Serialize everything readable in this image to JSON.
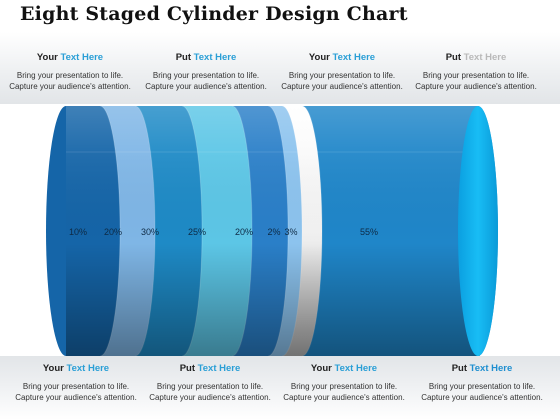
{
  "title": "Eight Staged Cylinder Design Chart",
  "top_blocks": [
    {
      "word1": "Your",
      "word2": "Text Here",
      "line1": "Bring your presentation to life.",
      "line2": "Capture your audience's attention."
    },
    {
      "word1": "Put",
      "word2": "Text Here",
      "line1": "Bring your presentation to life.",
      "line2": "Capture your audience's attention."
    },
    {
      "word1": "Your",
      "word2": "Text Here",
      "line1": "Bring your presentation to life.",
      "line2": "Capture your audience's attention."
    },
    {
      "word1": "Put",
      "word2": "Text Here",
      "line1": "Bring your presentation to life.",
      "line2": "Capture your audience's attention."
    }
  ],
  "bottom_blocks": [
    {
      "word1": "Your",
      "word2": "Text Here",
      "line1": "Bring your presentation to life.",
      "line2": "Capture your audience's attention."
    },
    {
      "word1": "Put",
      "word2": "Text Here",
      "line1": "Bring your presentation to life.",
      "line2": "Capture your audience's attention."
    },
    {
      "word1": "Your",
      "word2": "Text Here",
      "line1": "Bring your presentation to life.",
      "line2": "Capture your audience's attention."
    },
    {
      "word1": "Put",
      "word2": "Text Here",
      "line1": "Bring your presentation to life.",
      "line2": "Capture your audience's attention."
    }
  ],
  "segments": [
    {
      "label": "10%",
      "color": "#1565a8"
    },
    {
      "label": "20%",
      "color": "#7fb6e6"
    },
    {
      "label": "30%",
      "color": "#1e8ac6"
    },
    {
      "label": "25%",
      "color": "#5cc6e6"
    },
    {
      "label": "20%",
      "color": "#2a7fc8"
    },
    {
      "label": "2%",
      "color": "#8cc3ee"
    },
    {
      "label": "3%",
      "color": "#e6e6e6"
    },
    {
      "label": "55%",
      "color": "#1f86c9"
    }
  ],
  "end_cap_color": "#10b4f0"
}
